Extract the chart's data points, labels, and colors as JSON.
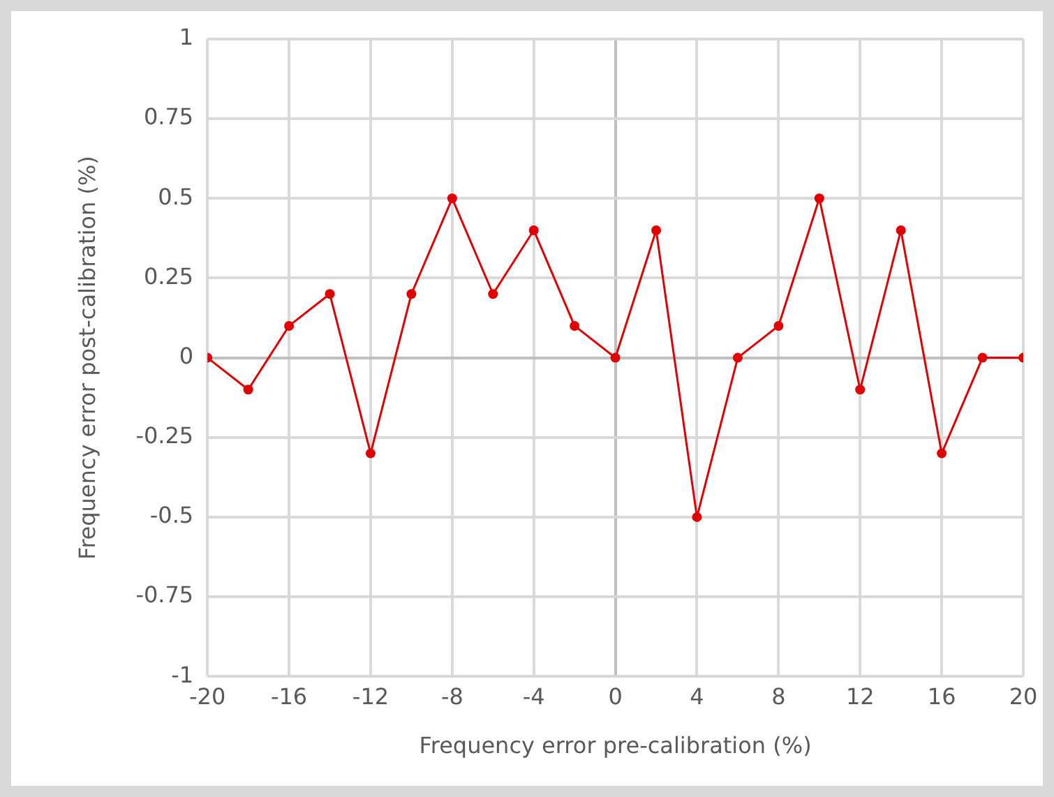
{
  "chart_data": {
    "type": "line",
    "xlabel": "Frequency error pre-calibration (%)",
    "ylabel": "Frequency error post-calibration (%)",
    "x": [
      -20,
      -18,
      -16,
      -14,
      -12,
      -10,
      -8,
      -6,
      -4,
      -2,
      0,
      2,
      4,
      6,
      8,
      10,
      12,
      14,
      16,
      18,
      20
    ],
    "series": [
      {
        "color": "#e00000",
        "values": [
          0,
          -0.1,
          0.1,
          0.2,
          -0.3,
          0.2,
          0.5,
          0.2,
          0.4,
          0.1,
          0,
          0.4,
          -0.5,
          0,
          0.1,
          0.5,
          -0.1,
          0.4,
          -0.3,
          0,
          0
        ]
      }
    ],
    "xlim": [
      -20,
      20
    ],
    "xticks": [
      -20,
      -16,
      -12,
      -8,
      -4,
      0,
      4,
      8,
      12,
      16,
      20
    ],
    "ylim": [
      -1,
      1
    ],
    "yticks": [
      -1,
      -0.75,
      -0.5,
      -0.25,
      0,
      0.25,
      0.5,
      0.75,
      1
    ],
    "grid": true,
    "legend": false,
    "marker": "circle",
    "line_style": "solid"
  }
}
